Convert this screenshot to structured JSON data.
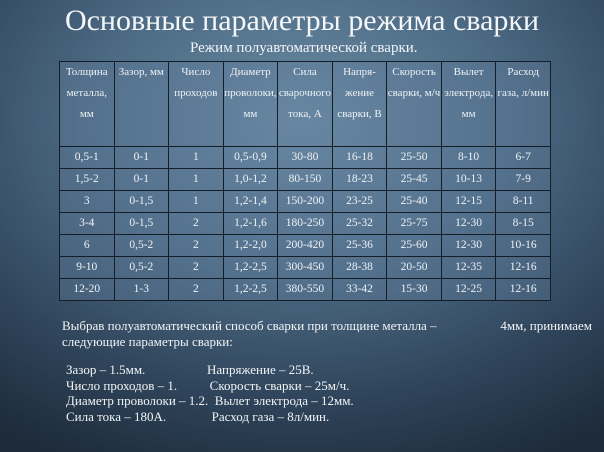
{
  "title": "Основные параметры режима сварки",
  "subtitle": "Режим полуавтоматической сварки.",
  "table": {
    "headers": [
      "Толщина металла, мм",
      "Зазор, мм",
      "Число проходов",
      "Диаметр проволоки, мм",
      "Сила сварочного тока, А",
      "Напря-жение сварки, В",
      "Скорость сварки, м/ч",
      "Вылет электрода, мм",
      "Расход газа, л/мин"
    ],
    "rows": [
      [
        "0,5-1",
        "0-1",
        "1",
        "0,5-0,9",
        "30-80",
        "16-18",
        "25-50",
        "8-10",
        "6-7"
      ],
      [
        "1,5-2",
        "0-1",
        "1",
        "1,0-1,2",
        "80-150",
        "18-23",
        "25-45",
        "10-13",
        "7-9"
      ],
      [
        "3",
        "0-1,5",
        "1",
        "1,2-1,4",
        "150-200",
        "23-25",
        "25-40",
        "12-15",
        "8-11"
      ],
      [
        "3-4",
        "0-1,5",
        "2",
        "1,2-1,6",
        "180-250",
        "25-32",
        "25-75",
        "12-30",
        "8-15"
      ],
      [
        "6",
        "0,5-2",
        "2",
        "1,2-2,0",
        "200-420",
        "25-36",
        "25-60",
        "12-30",
        "10-16"
      ],
      [
        "9-10",
        "0,5-2",
        "2",
        "1,2-2,5",
        "300-450",
        "28-38",
        "20-50",
        "12-35",
        "12-16"
      ],
      [
        "12-20",
        "1-3",
        "2",
        "1,2-2,5",
        "380-550",
        "33-42",
        "15-30",
        "12-25",
        "12-16"
      ]
    ]
  },
  "paragraph": {
    "line1": "Выбрав полуавтоматический способ сварки при толщине металла –",
    "line1_right": "4мм,   принимаем",
    "line2": "следующие параметры сварки:"
  },
  "params": [
    "Зазор – 1.5мм.                   Напряжение – 25В.",
    "Число проходов – 1.          Скорость сварки – 25м/ч.",
    "Диаметр проволоки – 1.2.  Вылет электрода – 12мм.",
    "Сила тока – 180А.              Расход газа – 8л/мин."
  ]
}
